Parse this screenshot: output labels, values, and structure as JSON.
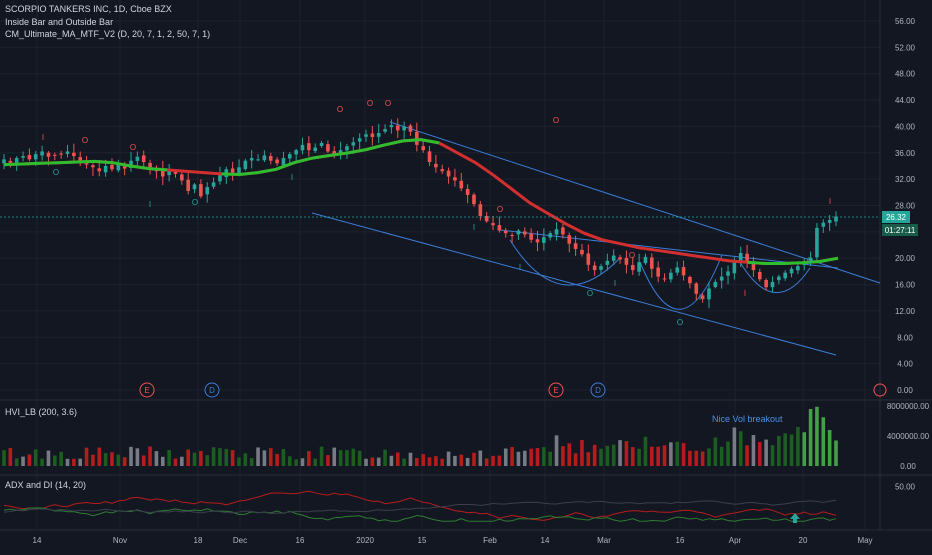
{
  "header": {
    "title": "SCORPIO TANKERS INC, 1D, Cboe BZX",
    "indicator1": "Inside Bar and Outside Bar",
    "indicator2": "CM_Ultimate_MA_MTF_V2 (D, 20, 7, 1, 2, 50, 7, 1)"
  },
  "colors": {
    "background": "#131722",
    "grid": "#1e222d",
    "up": "#26a69a",
    "down": "#ef5350",
    "ma_red": "#d32f2f",
    "ma_green": "#2ebd2e",
    "trendline": "#3b7dd8",
    "axis_text": "#b2b5be",
    "price_tag": "#26a69a",
    "vol_red": "#b71c1c",
    "vol_green": "#1b5e20",
    "vol_gray": "#787b86"
  },
  "price_axis": {
    "ticks": [
      "56.00",
      "52.00",
      "48.00",
      "44.00",
      "40.00",
      "36.00",
      "32.00",
      "28.00",
      "24.00",
      "20.00",
      "16.00",
      "12.00",
      "8.00",
      "4.00",
      "0.00"
    ],
    "last_price": "26.32",
    "countdown": "01:27:11"
  },
  "time_axis": {
    "ticks": [
      "14",
      "Nov",
      "18",
      "Dec",
      "16",
      "2020",
      "15",
      "Feb",
      "14",
      "Mar",
      "16",
      "Apr",
      "20",
      "May"
    ]
  },
  "events": [
    {
      "letter": "E",
      "type": "earnings"
    },
    {
      "letter": "D",
      "type": "dividend"
    },
    {
      "letter": "E",
      "type": "earnings"
    },
    {
      "letter": "D",
      "type": "dividend"
    }
  ],
  "volume_pane": {
    "label": "HVI_LB (200, 3.6)",
    "annotation": "Nice Vol breakout",
    "ticks": [
      "8000000.00",
      "4000000.00",
      "0.00"
    ]
  },
  "adx_pane": {
    "label": "ADX and DI (14, 20)",
    "ticks": [
      "50.00"
    ]
  },
  "chart_data": {
    "type": "candlestick",
    "title": "SCORPIO TANKERS INC, 1D, Cboe BZX",
    "ylim": [
      0,
      58
    ],
    "last_price": 26.32,
    "closes": [
      35,
      34.5,
      35.2,
      35.5,
      35,
      35.8,
      36.2,
      35.4,
      35.6,
      35.8,
      36.2,
      35.5,
      34.6,
      34.2,
      33.8,
      33.2,
      34,
      33.5,
      34.2,
      33.6,
      34.8,
      35.4,
      34.6,
      33.8,
      33.2,
      32.4,
      33.2,
      32.8,
      31.8,
      30.2,
      31.2,
      29.4,
      30.8,
      31.5,
      32.6,
      33.5,
      33,
      33.8,
      34.8,
      35.2,
      35,
      35.6,
      34.8,
      34.4,
      35.2,
      35.8,
      36.4,
      37.2,
      36.4,
      36.8,
      37.5,
      36.2,
      35.8,
      36.4,
      37,
      37.6,
      38.2,
      38.8,
      38.4,
      39,
      39.6,
      40.2,
      39.4,
      40,
      39.2,
      37.2,
      36.4,
      34.6,
      33.8,
      33.2,
      32.4,
      31.8,
      30.6,
      29.6,
      28.2,
      26.4,
      25.6,
      25,
      24.2,
      23.8,
      23.4,
      24.2,
      23.6,
      22.8,
      22.4,
      23.2,
      23.8,
      24.4,
      23.6,
      22.2,
      21.4,
      20.6,
      19,
      18.2,
      18.8,
      19.6,
      20.4,
      19.8,
      19,
      18.2,
      19.4,
      20.2,
      18.4,
      17.2,
      16.8,
      17.8,
      18.6,
      17.4,
      16.2,
      14.6,
      13.8,
      15.4,
      16.4,
      17.2,
      18,
      19.6,
      20.8,
      19.4,
      18.2,
      16.8,
      15.6,
      16.4,
      17.2,
      17.8,
      18.4,
      18.8,
      19.2,
      20,
      24.6,
      25.4,
      25.8,
      26.32
    ],
    "ma20_values": [
      34.2,
      34.3,
      34.4,
      34.5,
      34.6,
      34.7,
      34.5,
      34,
      33.6,
      33.4,
      33.2,
      33,
      32.8,
      32.7,
      33,
      33.5,
      34.5,
      35.2,
      35.6,
      36,
      36.5,
      37.2,
      37.8,
      38,
      37.5,
      36,
      34.5,
      32.6,
      30.5,
      28.4,
      26.8,
      25.2,
      23.8,
      22.8,
      22.2,
      21.6,
      21.2,
      20.8,
      20.4,
      20,
      19.6,
      19.4,
      19.2,
      19.2,
      19.3,
      19.5,
      20
    ],
    "ma50_values": [
      31.8,
      32.2,
      32.8,
      33.2,
      33.4,
      33.2,
      32.9,
      32.6,
      32.4,
      32.3,
      32.4,
      32.6,
      33,
      33.5,
      34,
      34.6,
      35.2,
      35.8,
      36.2,
      36.6,
      37,
      37.4,
      37.8,
      38.2,
      38.4
    ],
    "annotations": [
      "Nice Vol breakout"
    ]
  }
}
